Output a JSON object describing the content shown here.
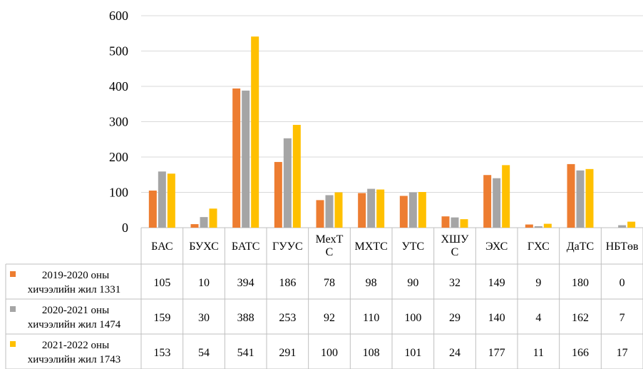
{
  "chart_data": {
    "type": "bar",
    "categories": [
      "БАС",
      "БУХС",
      "БАТС",
      "ГУУС",
      "МехТ С",
      "МХТС",
      "УТС",
      "ХШУ С",
      "ЭХС",
      "ГХС",
      "ДаТС",
      "НБТөв"
    ],
    "series": [
      {
        "name": "2019-2020 оны хичээлийн жил 1331",
        "color": "#ED7D31",
        "values": [
          105,
          10,
          394,
          186,
          78,
          98,
          90,
          32,
          149,
          9,
          180,
          0
        ]
      },
      {
        "name": "2020-2021 оны хичээлийн жил 1474",
        "color": "#A5A5A5",
        "values": [
          159,
          30,
          388,
          253,
          92,
          110,
          100,
          29,
          140,
          4,
          162,
          7
        ]
      },
      {
        "name": "2021-2022 оны хичээлийн жил 1743",
        "color": "#FFC000",
        "values": [
          153,
          54,
          541,
          291,
          100,
          108,
          101,
          24,
          177,
          11,
          166,
          17
        ]
      }
    ],
    "ylim": [
      0,
      600
    ],
    "yticks": [
      0,
      100,
      200,
      300,
      400,
      500,
      600
    ],
    "grid": true,
    "legend": "data table below chart"
  }
}
